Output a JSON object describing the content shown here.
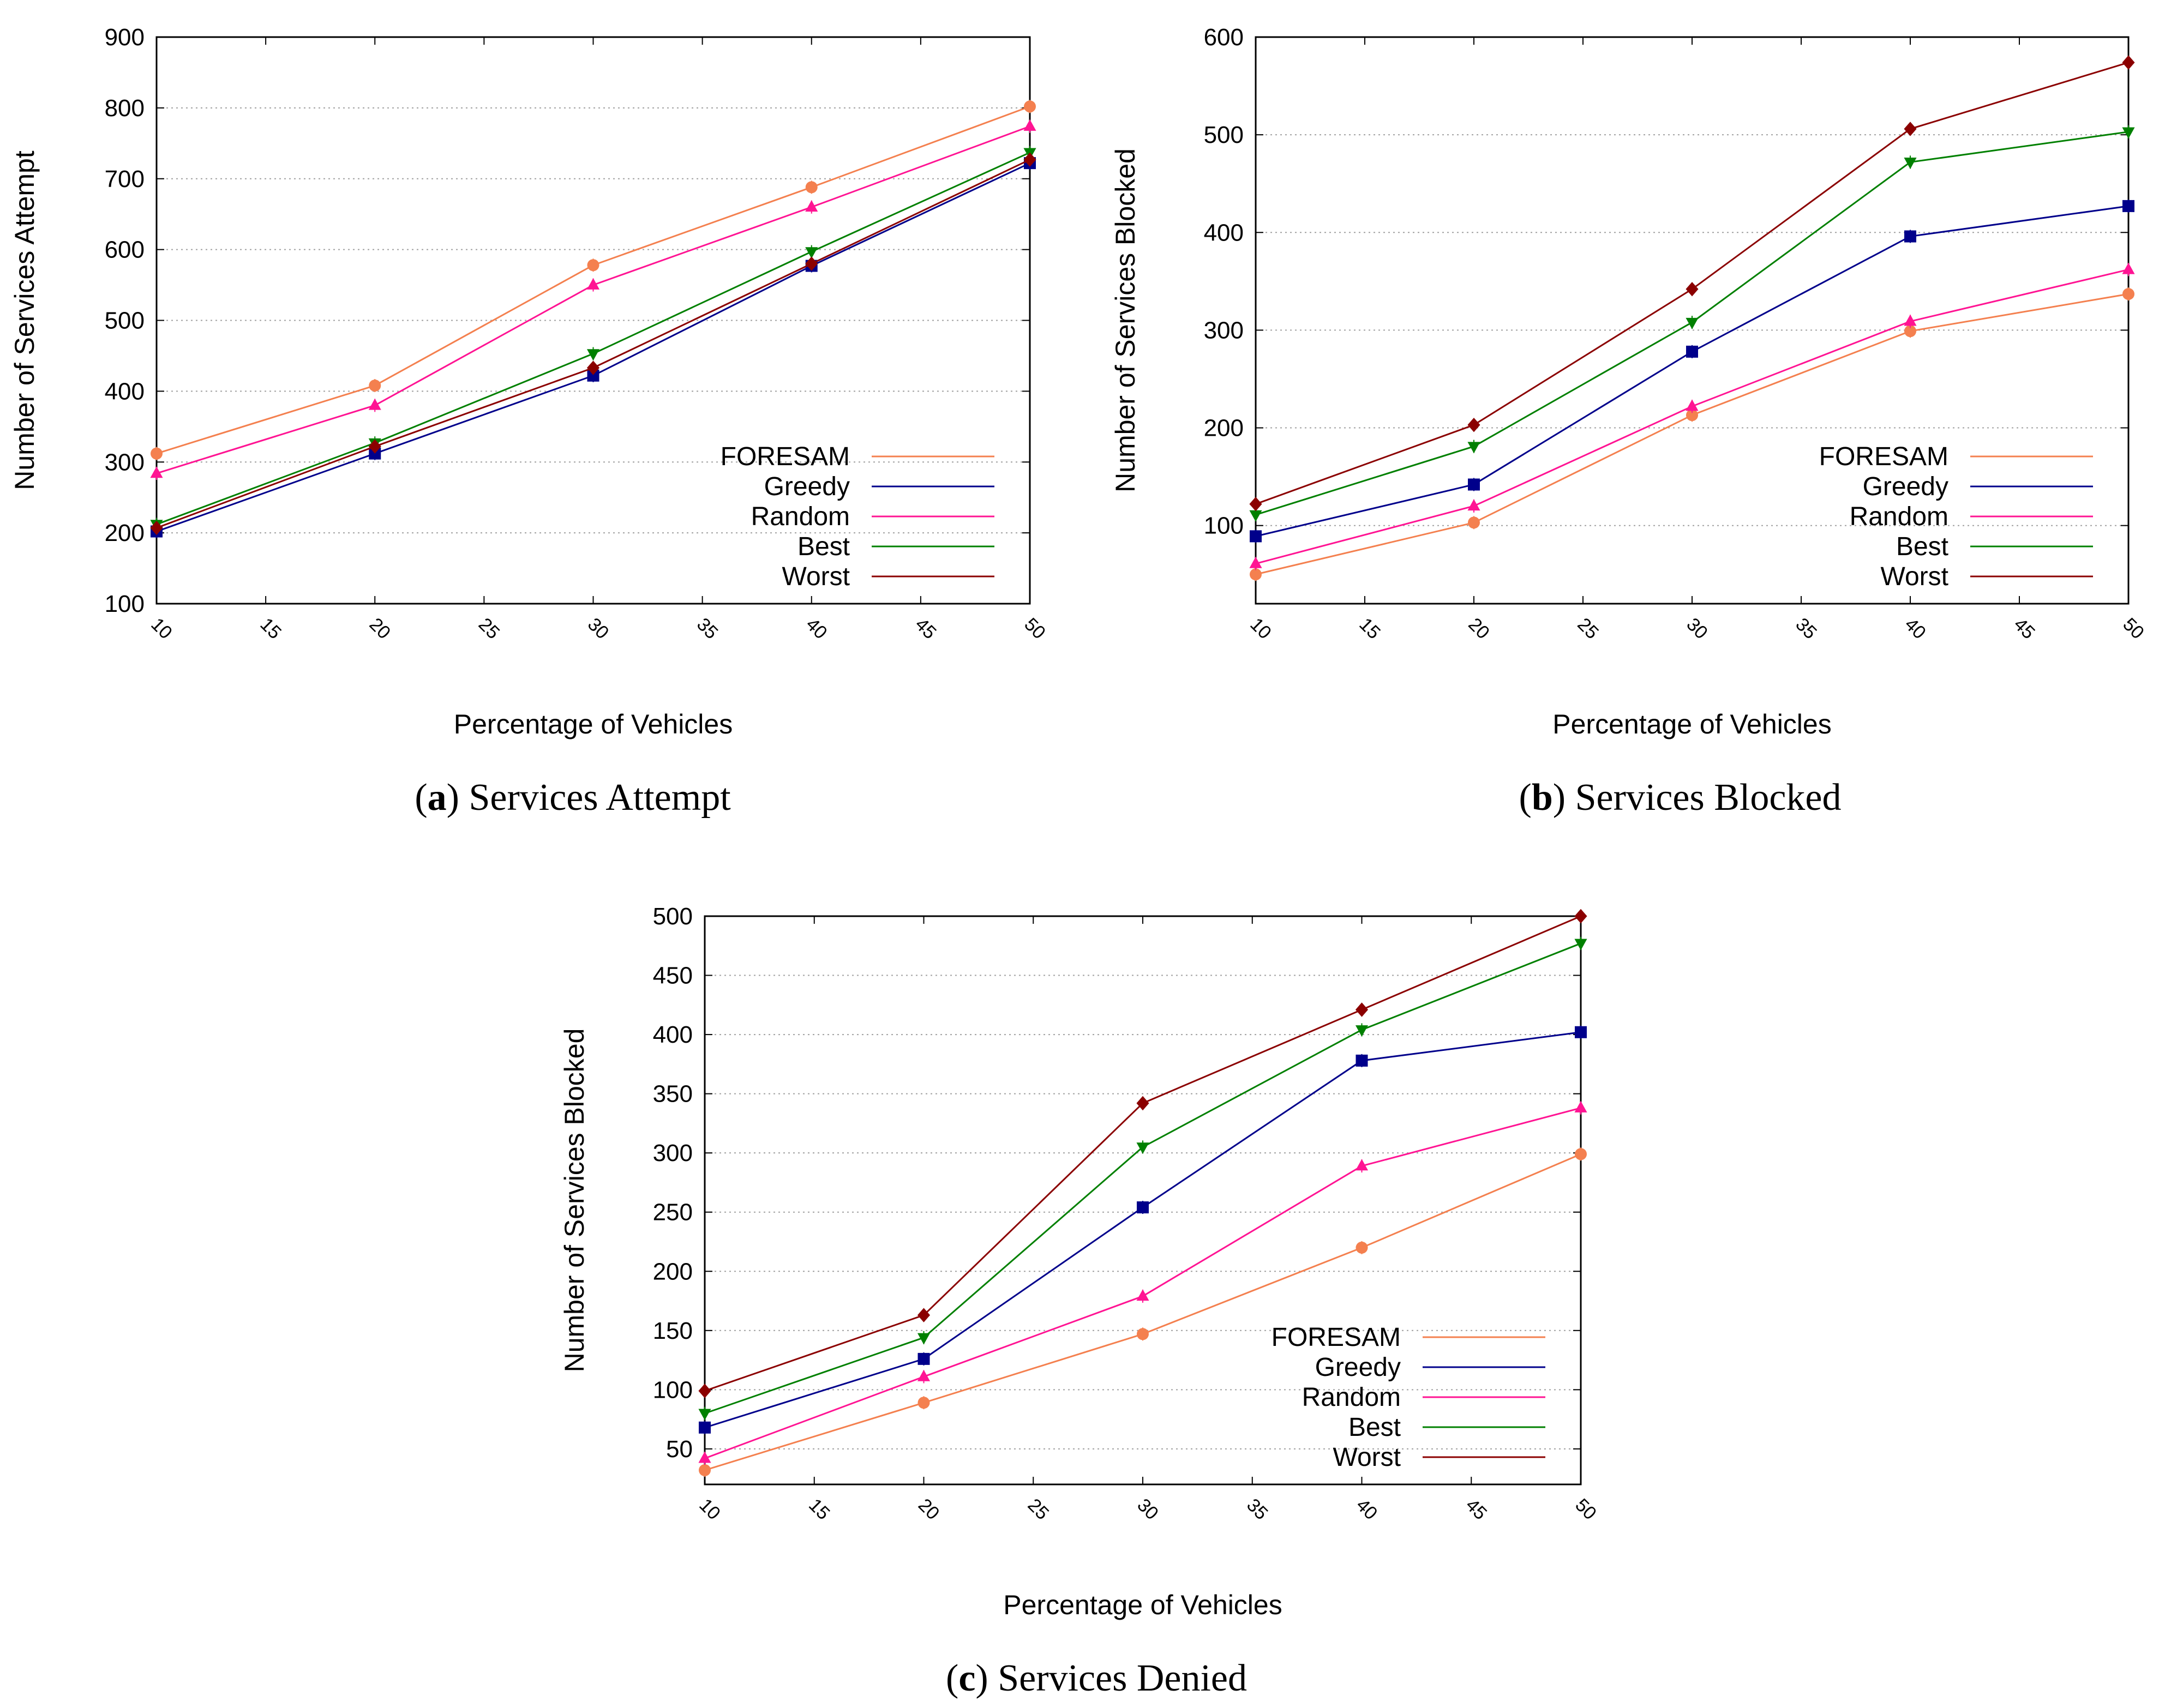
{
  "chart_data": [
    {
      "id": "a",
      "type": "line",
      "caption_letter": "a",
      "caption_text": "Services Attempt",
      "xlabel": "Percentage of Vehicles",
      "ylabel": "Number of Services Attempt",
      "xlim": [
        10,
        50
      ],
      "ylim": [
        100,
        900
      ],
      "xticks": [
        10,
        15,
        20,
        25,
        30,
        35,
        40,
        45,
        50
      ],
      "yticks": [
        100,
        200,
        300,
        400,
        500,
        600,
        700,
        800,
        900
      ],
      "grid": "horizontal-dotted",
      "legend_position": "bottom-right",
      "x": [
        10,
        20,
        30,
        40,
        50
      ],
      "series": [
        {
          "name": "FORESAM",
          "color": "#f4804f",
          "marker": "circle",
          "values": [
            312,
            408,
            578,
            688,
            802
          ]
        },
        {
          "name": "Greedy",
          "color": "#00008b",
          "marker": "square",
          "values": [
            202,
            312,
            422,
            577,
            722
          ]
        },
        {
          "name": "Random",
          "color": "#ff1493",
          "marker": "triangle-up",
          "values": [
            284,
            380,
            550,
            660,
            774
          ]
        },
        {
          "name": "Best",
          "color": "#008000",
          "marker": "triangle-down",
          "values": [
            212,
            327,
            453,
            597,
            737
          ]
        },
        {
          "name": "Worst",
          "color": "#8b0000",
          "marker": "diamond",
          "values": [
            207,
            322,
            433,
            580,
            727
          ]
        }
      ]
    },
    {
      "id": "b",
      "type": "line",
      "caption_letter": "b",
      "caption_text": "Services Blocked",
      "xlabel": "Percentage of Vehicles",
      "ylabel": "Number of Services Blocked",
      "xlim": [
        10,
        50
      ],
      "ylim": [
        20,
        600
      ],
      "xticks": [
        10,
        15,
        20,
        25,
        30,
        35,
        40,
        45,
        50
      ],
      "yticks": [
        100,
        200,
        300,
        400,
        500,
        600
      ],
      "grid": "horizontal-dotted",
      "legend_position": "bottom-right",
      "x": [
        10,
        20,
        30,
        40,
        50
      ],
      "series": [
        {
          "name": "FORESAM",
          "color": "#f4804f",
          "marker": "circle",
          "values": [
            50,
            103,
            213,
            299,
            337
          ]
        },
        {
          "name": "Greedy",
          "color": "#00008b",
          "marker": "square",
          "values": [
            89,
            142,
            278,
            396,
            427
          ]
        },
        {
          "name": "Random",
          "color": "#ff1493",
          "marker": "triangle-up",
          "values": [
            61,
            120,
            222,
            309,
            362
          ]
        },
        {
          "name": "Best",
          "color": "#008000",
          "marker": "triangle-down",
          "values": [
            111,
            181,
            308,
            472,
            503
          ]
        },
        {
          "name": "Worst",
          "color": "#8b0000",
          "marker": "diamond",
          "values": [
            122,
            203,
            342,
            506,
            574
          ]
        }
      ]
    },
    {
      "id": "c",
      "type": "line",
      "caption_letter": "c",
      "caption_text": "Services Denied",
      "xlabel": "Percentage of Vehicles",
      "ylabel": "Number of Services Blocked",
      "xlim": [
        10,
        50
      ],
      "ylim": [
        20,
        500
      ],
      "xticks": [
        10,
        15,
        20,
        25,
        30,
        35,
        40,
        45,
        50
      ],
      "yticks": [
        50,
        100,
        150,
        200,
        250,
        300,
        350,
        400,
        450,
        500
      ],
      "grid": "horizontal-dotted",
      "legend_position": "bottom-right",
      "x": [
        10,
        20,
        30,
        40,
        50
      ],
      "series": [
        {
          "name": "FORESAM",
          "color": "#f4804f",
          "marker": "circle",
          "values": [
            32,
            89,
            147,
            220,
            299
          ]
        },
        {
          "name": "Greedy",
          "color": "#00008b",
          "marker": "square",
          "values": [
            68,
            126,
            254,
            378,
            402
          ]
        },
        {
          "name": "Random",
          "color": "#ff1493",
          "marker": "triangle-up",
          "values": [
            42,
            111,
            179,
            289,
            338
          ]
        },
        {
          "name": "Best",
          "color": "#008000",
          "marker": "triangle-down",
          "values": [
            80,
            144,
            305,
            404,
            477
          ]
        },
        {
          "name": "Worst",
          "color": "#8b0000",
          "marker": "diamond",
          "values": [
            99,
            163,
            342,
            421,
            500
          ]
        }
      ]
    }
  ]
}
